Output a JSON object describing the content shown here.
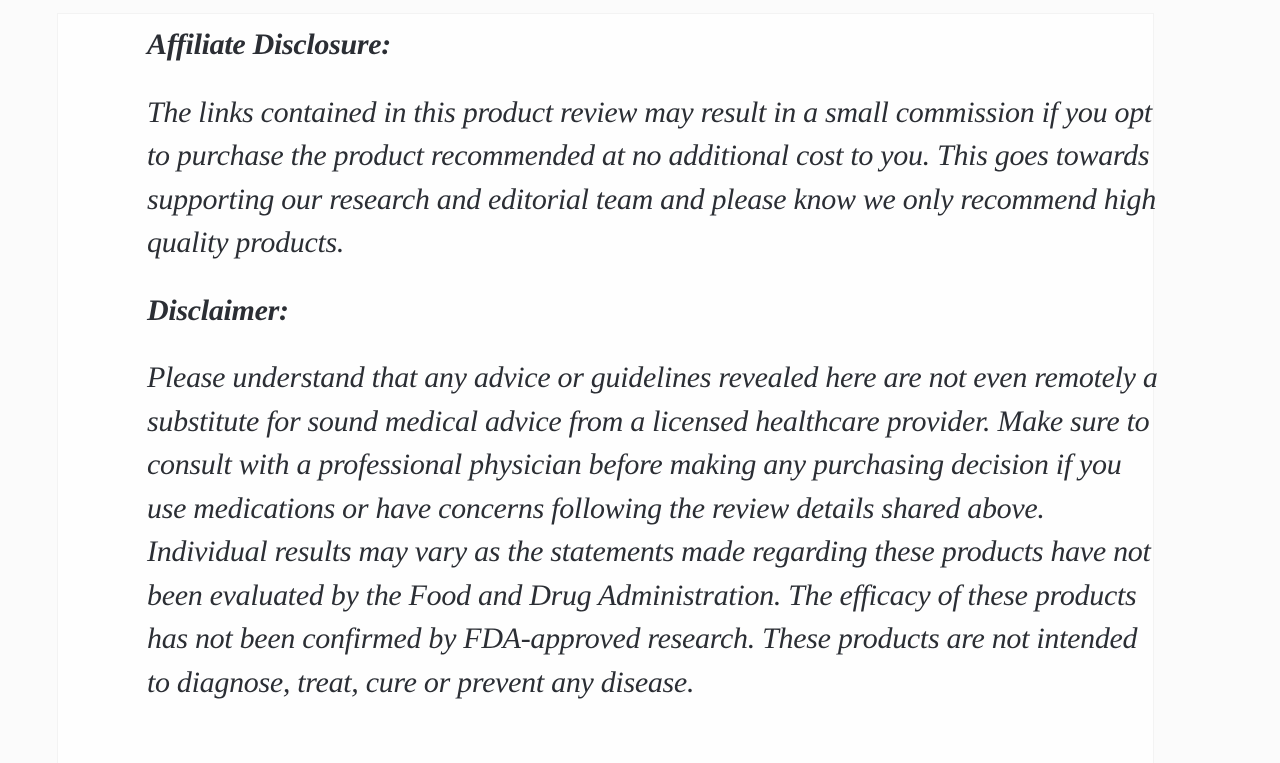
{
  "article": {
    "affiliate_heading": "Affiliate Disclosure:",
    "affiliate_text": "The links contained in this product review may result in a small commission if you opt to purchase the product recommended at no additional cost to you. This goes towards supporting our research and editorial team and please know we only recommend high quality products.",
    "disclaimer_heading": "Disclaimer:",
    "disclaimer_text": "Please understand that any advice or guidelines revealed here are not even remotely a substitute for sound medical advice from a licensed healthcare provider. Make sure to consult with a professional physician before making any purchasing decision if you use medications or have concerns following the review details shared above. Individual results may vary as the statements made regarding these products have not been evaluated by the Food and Drug Administration. The efficacy of these products has not been confirmed by FDA-approved research. These products are not intended to diagnose, treat, cure or prevent any disease."
  }
}
